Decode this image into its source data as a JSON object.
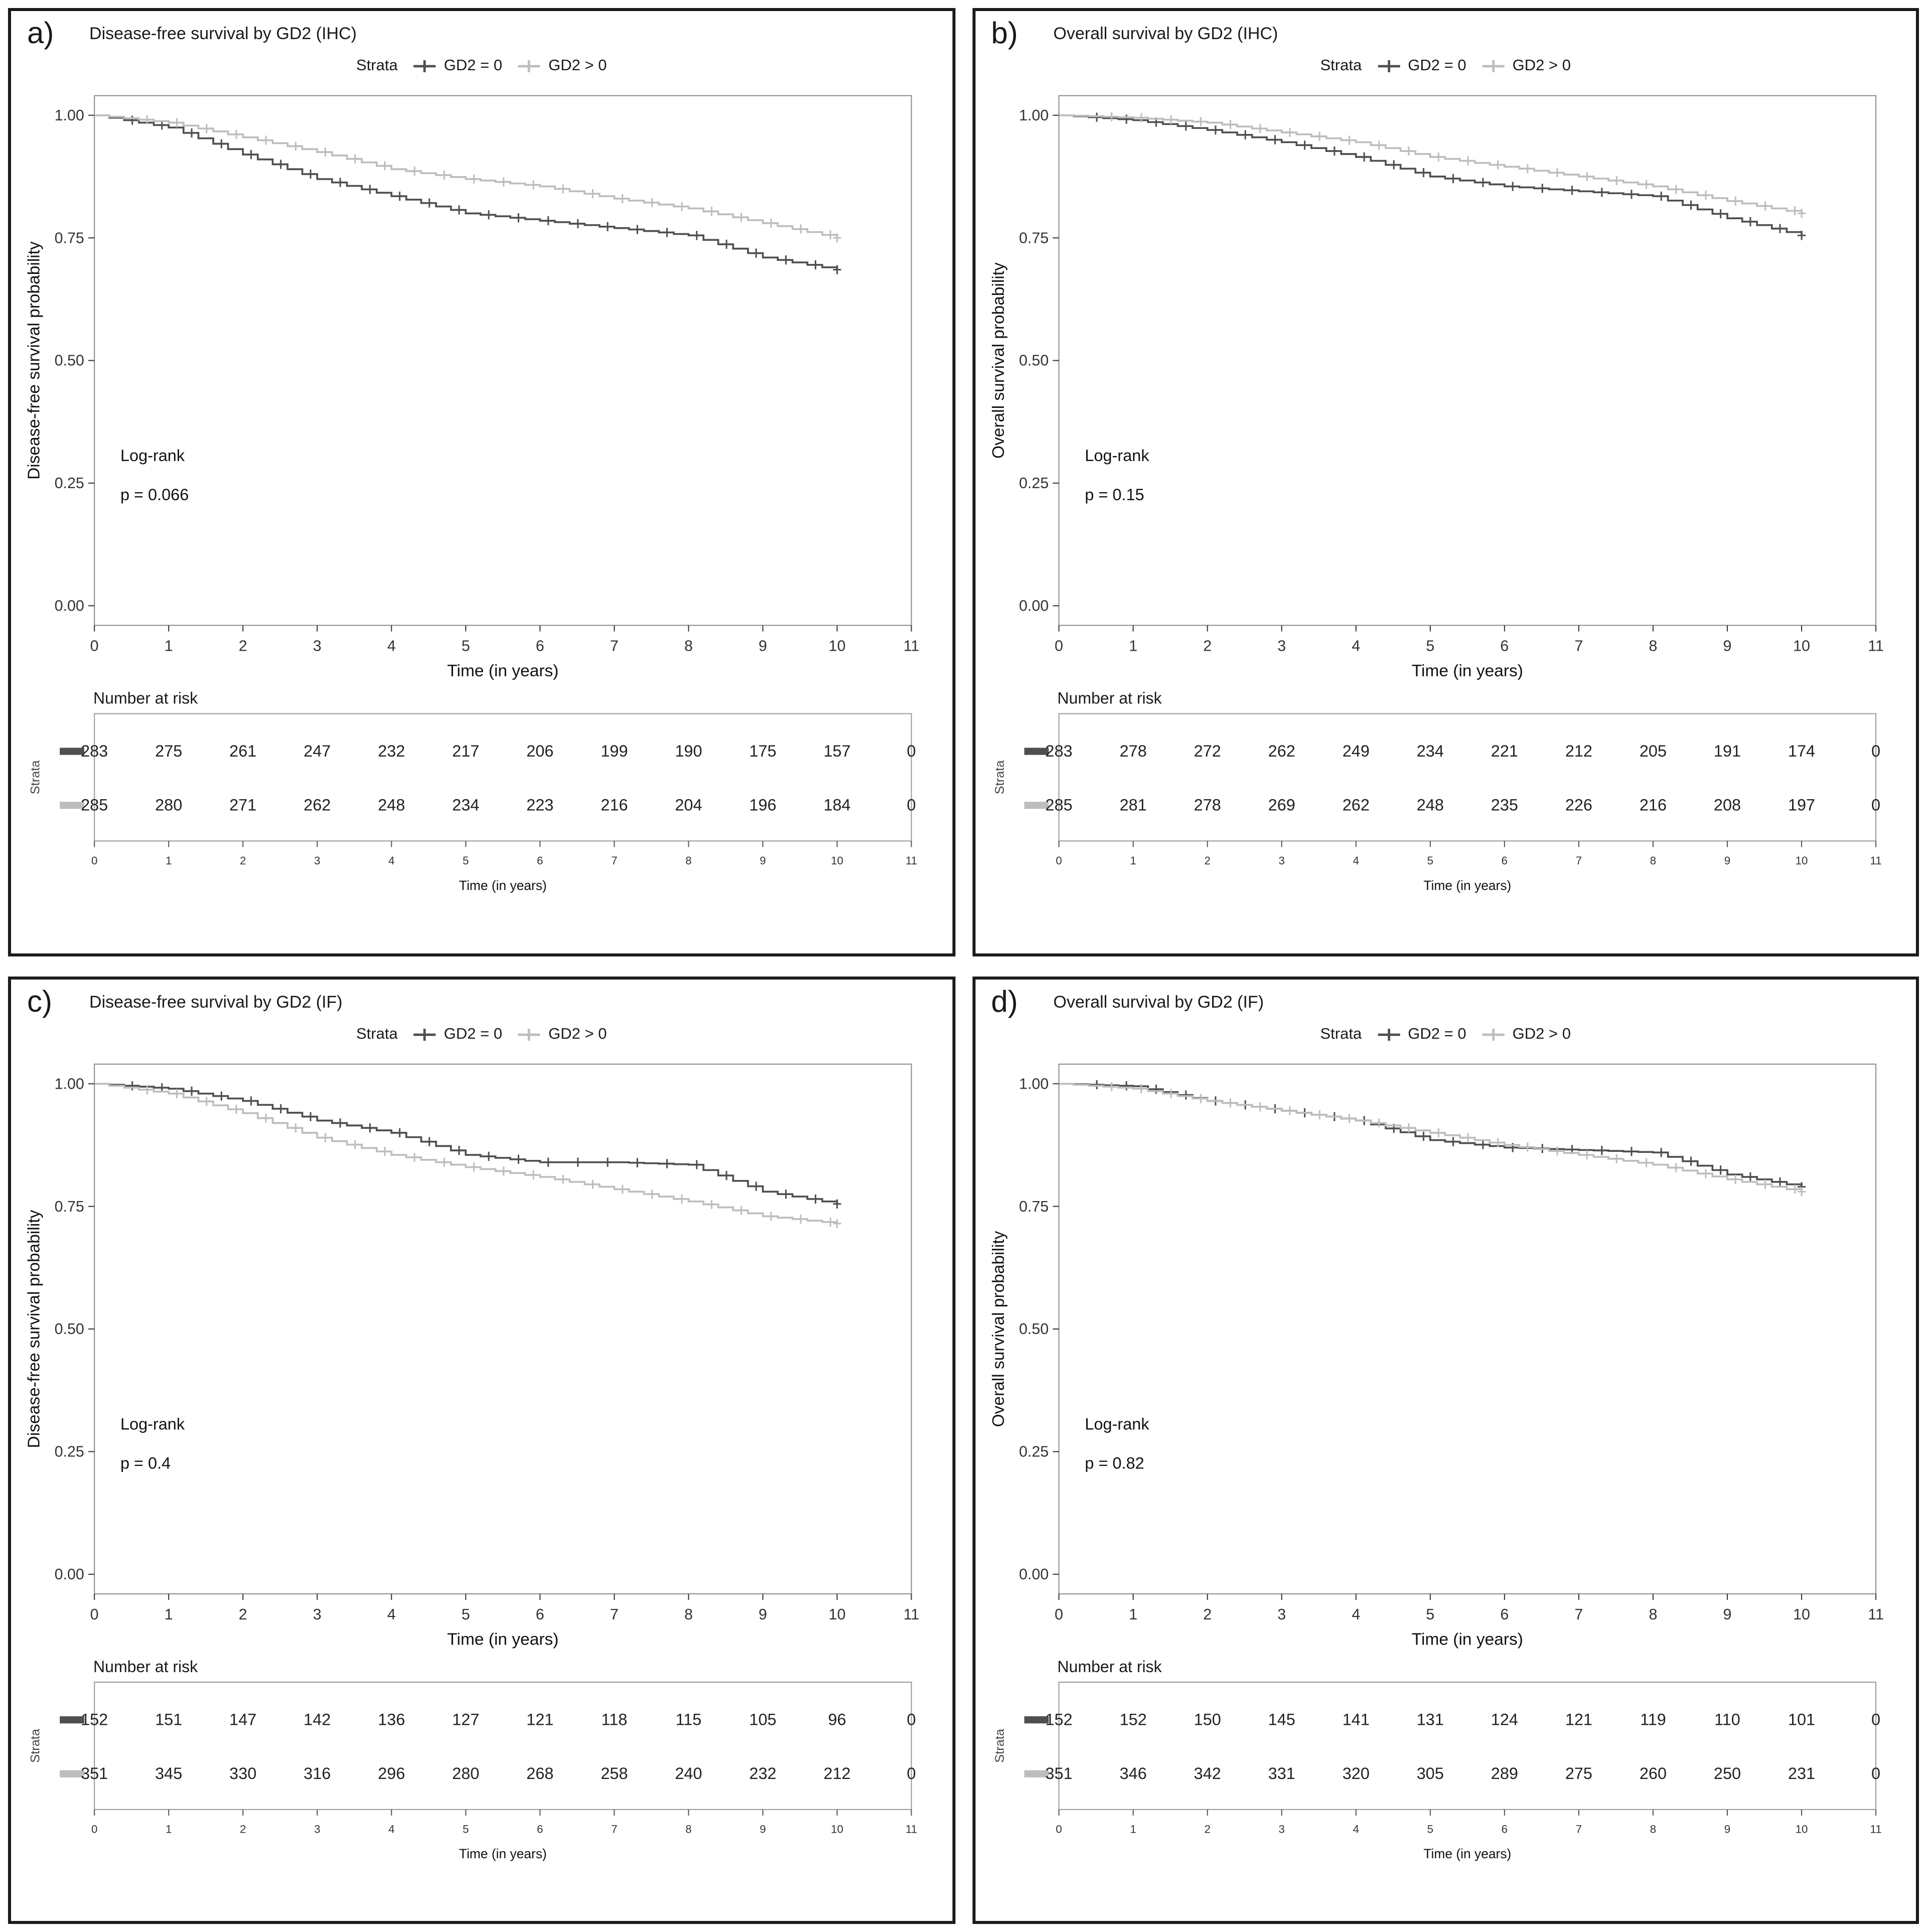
{
  "figure": {
    "strata_label": "Strata",
    "legend": [
      {
        "name": "GD2 = 0",
        "color": "#4f4f4f"
      },
      {
        "name": "GD2 > 0",
        "color": "#bdbdbd"
      }
    ],
    "x_label": "Time (in years)",
    "x_ticks": [
      0,
      1,
      2,
      3,
      4,
      5,
      6,
      7,
      8,
      9,
      10,
      11
    ],
    "y_ticks": [
      "0.00",
      "0.25",
      "0.50",
      "0.75",
      "1.00"
    ],
    "risk_header": "Number at risk",
    "logrank_label": "Log-rank"
  },
  "chart_data": [
    {
      "id": "a",
      "letter": "a)",
      "type": "line",
      "title": "Disease-free survival by GD2 (IHC)",
      "ylabel": "Disease-free survival probability",
      "xlabel": "Time (in years)",
      "p_value": "p = 0.066",
      "xlim": [
        0,
        11
      ],
      "ylim": [
        0,
        1
      ],
      "x": [
        0,
        1,
        2,
        3,
        4,
        5,
        6,
        7,
        8,
        9,
        10
      ],
      "series": [
        {
          "name": "GD2 = 0",
          "values": [
            1.0,
            0.975,
            0.92,
            0.87,
            0.835,
            0.8,
            0.785,
            0.77,
            0.755,
            0.71,
            0.685
          ]
        },
        {
          "name": "GD2 > 0",
          "values": [
            1.0,
            0.985,
            0.955,
            0.925,
            0.89,
            0.87,
            0.855,
            0.83,
            0.81,
            0.78,
            0.75
          ]
        }
      ],
      "number_at_risk": [
        [
          283,
          275,
          261,
          247,
          232,
          217,
          206,
          199,
          190,
          175,
          157,
          0
        ],
        [
          285,
          280,
          271,
          262,
          248,
          234,
          223,
          216,
          204,
          196,
          184,
          0
        ]
      ]
    },
    {
      "id": "b",
      "letter": "b)",
      "type": "line",
      "title": "Overall survival by GD2 (IHC)",
      "ylabel": "Overall survival probability",
      "xlabel": "Time (in years)",
      "p_value": "p = 0.15",
      "xlim": [
        0,
        11
      ],
      "ylim": [
        0,
        1
      ],
      "x": [
        0,
        1,
        2,
        3,
        4,
        5,
        6,
        7,
        8,
        9,
        10
      ],
      "series": [
        {
          "name": "GD2 = 0",
          "values": [
            1.0,
            0.99,
            0.97,
            0.945,
            0.915,
            0.875,
            0.855,
            0.845,
            0.835,
            0.79,
            0.755
          ]
        },
        {
          "name": "GD2 > 0",
          "values": [
            1.0,
            0.995,
            0.985,
            0.965,
            0.945,
            0.915,
            0.895,
            0.875,
            0.855,
            0.825,
            0.8
          ]
        }
      ],
      "number_at_risk": [
        [
          283,
          278,
          272,
          262,
          249,
          234,
          221,
          212,
          205,
          191,
          174,
          0
        ],
        [
          285,
          281,
          278,
          269,
          262,
          248,
          235,
          226,
          216,
          208,
          197,
          0
        ]
      ]
    },
    {
      "id": "c",
      "letter": "c)",
      "type": "line",
      "title": "Disease-free survival by GD2 (IF)",
      "ylabel": "Disease-free survival probability",
      "xlabel": "Time (in years)",
      "p_value": "p = 0.4",
      "xlim": [
        0,
        11
      ],
      "ylim": [
        0,
        1
      ],
      "x": [
        0,
        1,
        2,
        3,
        4,
        5,
        6,
        7,
        8,
        9,
        10
      ],
      "series": [
        {
          "name": "GD2 = 0",
          "values": [
            1.0,
            0.99,
            0.965,
            0.925,
            0.9,
            0.855,
            0.84,
            0.84,
            0.835,
            0.78,
            0.755
          ]
        },
        {
          "name": "GD2 > 0",
          "values": [
            1.0,
            0.98,
            0.94,
            0.89,
            0.855,
            0.83,
            0.81,
            0.785,
            0.76,
            0.73,
            0.715
          ]
        }
      ],
      "number_at_risk": [
        [
          152,
          151,
          147,
          142,
          136,
          127,
          121,
          118,
          115,
          105,
          96,
          0
        ],
        [
          351,
          345,
          330,
          316,
          296,
          280,
          268,
          258,
          240,
          232,
          212,
          0
        ]
      ]
    },
    {
      "id": "d",
      "letter": "d)",
      "type": "line",
      "title": "Overall survival by GD2 (IF)",
      "ylabel": "Overall survival probability",
      "xlabel": "Time (in years)",
      "p_value": "p = 0.82",
      "xlim": [
        0,
        11
      ],
      "ylim": [
        0,
        1
      ],
      "x": [
        0,
        1,
        2,
        3,
        4,
        5,
        6,
        7,
        8,
        9,
        10
      ],
      "series": [
        {
          "name": "GD2 = 0",
          "values": [
            1.0,
            0.995,
            0.965,
            0.945,
            0.925,
            0.885,
            0.87,
            0.865,
            0.86,
            0.815,
            0.79
          ]
        },
        {
          "name": "GD2 > 0",
          "values": [
            1.0,
            0.99,
            0.965,
            0.945,
            0.925,
            0.9,
            0.875,
            0.855,
            0.835,
            0.805,
            0.78
          ]
        }
      ],
      "number_at_risk": [
        [
          152,
          152,
          150,
          145,
          141,
          131,
          124,
          121,
          119,
          110,
          101,
          0
        ],
        [
          351,
          346,
          342,
          331,
          320,
          305,
          289,
          275,
          260,
          250,
          231,
          0
        ]
      ]
    }
  ]
}
